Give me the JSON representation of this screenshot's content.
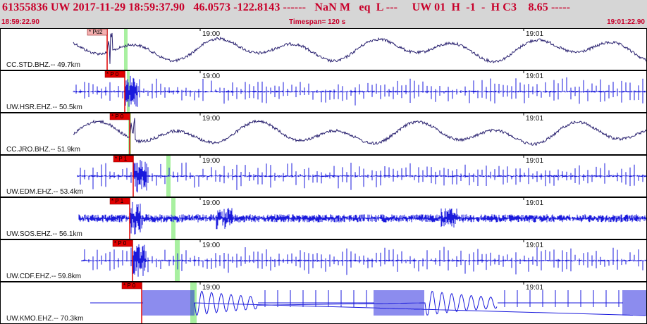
{
  "header": {
    "title": "61355836 UW 2017-11-29 18:59:37.90   46.0573 -122.8143 ------   NaN M   eq  L ---     UW 01  H  -1  -  H C3    8.65 -----",
    "start_time": "18:59:22.90",
    "timespan": "Timespan= 120 s",
    "end_time": "19:01:22.90"
  },
  "time_ticks": [
    "19:00",
    "19:01"
  ],
  "traces": [
    {
      "label": "CC.STD.BHZ.-- 49.7km",
      "pick": "* Pd2",
      "kind": "broadband",
      "color": "#2a2270",
      "pick_color": "#f4b0b0"
    },
    {
      "label": "UW.HSR.EHZ.-- 50.5km",
      "pick": "* P 0",
      "kind": "short",
      "color": "#1a1adc",
      "pick_color": "#e00000"
    },
    {
      "label": "CC.JRO.BHZ.-- 51.9km",
      "pick": "* P 0",
      "kind": "broadband",
      "color": "#2a2270",
      "pick_color": "#e00000"
    },
    {
      "label": "UW.EDM.EHZ.-- 53.4km",
      "pick": "* P 1",
      "kind": "short",
      "color": "#1a1adc",
      "pick_color": "#e00000"
    },
    {
      "label": "UW.SOS.EHZ.-- 56.1km",
      "pick": "* P 1",
      "kind": "noisy",
      "color": "#1a1adc",
      "pick_color": "#e00000"
    },
    {
      "label": "UW.CDF.EHZ.-- 59.8km",
      "pick": "* P 0",
      "kind": "short",
      "color": "#1a1adc",
      "pick_color": "#e00000"
    },
    {
      "label": "UW.KMO.EHZ.-- 70.3km",
      "pick": "* P 0",
      "kind": "clipped",
      "color": "#1a1adc",
      "pick_color": "#e00000"
    }
  ],
  "colors": {
    "header_bg": "#d6d6d6",
    "header_text": "#c8002a",
    "s_marker": "#a8f0a0",
    "pick_line": "#e00000"
  }
}
